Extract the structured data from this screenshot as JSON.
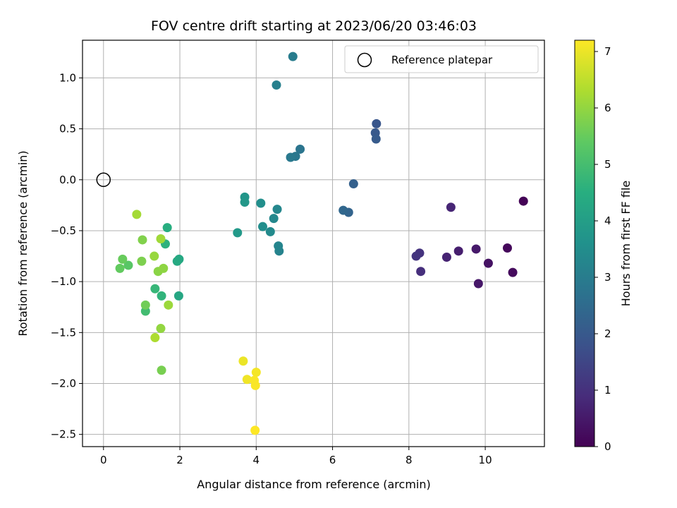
{
  "chart_data": {
    "type": "scatter",
    "title": "FOV centre drift starting at 2023/06/20 03:46:03",
    "xlabel": "Angular distance from reference (arcmin)",
    "ylabel": "Rotation from reference (arcmin)",
    "xlim": [
      -0.55,
      11.55
    ],
    "ylim": [
      -2.62,
      1.37
    ],
    "xticks": [
      0,
      2,
      4,
      6,
      8,
      10
    ],
    "yticks": [
      -2.5,
      -2.0,
      -1.5,
      -1.0,
      -0.5,
      0.0,
      0.5,
      1.0
    ],
    "xtick_labels": [
      "0",
      "2",
      "4",
      "6",
      "8",
      "10"
    ],
    "ytick_labels": [
      "−2.5",
      "−2.0",
      "−1.5",
      "−1.0",
      "−0.5",
      "0.0",
      "0.5",
      "1.0"
    ],
    "grid": true,
    "colormap": "viridis",
    "colorbar": {
      "label": "Hours from first FF file",
      "range": [
        0,
        7.2
      ],
      "ticks": [
        0,
        1,
        2,
        3,
        4,
        5,
        6,
        7
      ],
      "tick_labels": [
        "0",
        "1",
        "2",
        "3",
        "4",
        "5",
        "6",
        "7"
      ]
    },
    "legend": {
      "entries": [
        "Reference platepar"
      ],
      "position": "top-right"
    },
    "reference_point": {
      "x": 0,
      "y": 0
    },
    "points": [
      {
        "x": 11.0,
        "y": -0.21,
        "c": 0.05
      },
      {
        "x": 10.58,
        "y": -0.67,
        "c": 0.15
      },
      {
        "x": 10.72,
        "y": -0.91,
        "c": 0.2
      },
      {
        "x": 10.08,
        "y": -0.82,
        "c": 0.35
      },
      {
        "x": 9.82,
        "y": -1.02,
        "c": 0.45
      },
      {
        "x": 9.76,
        "y": -0.68,
        "c": 0.5
      },
      {
        "x": 9.3,
        "y": -0.7,
        "c": 0.6
      },
      {
        "x": 8.99,
        "y": -0.76,
        "c": 0.7
      },
      {
        "x": 9.1,
        "y": -0.27,
        "c": 0.75
      },
      {
        "x": 8.31,
        "y": -0.9,
        "c": 0.95
      },
      {
        "x": 8.28,
        "y": -0.72,
        "c": 1.05
      },
      {
        "x": 8.19,
        "y": -0.75,
        "c": 1.1
      },
      {
        "x": 7.15,
        "y": 0.55,
        "c": 1.9
      },
      {
        "x": 7.12,
        "y": 0.46,
        "c": 2.0
      },
      {
        "x": 7.14,
        "y": 0.4,
        "c": 2.05
      },
      {
        "x": 6.55,
        "y": -0.04,
        "c": 2.2
      },
      {
        "x": 6.42,
        "y": -0.32,
        "c": 2.3
      },
      {
        "x": 6.28,
        "y": -0.3,
        "c": 2.4
      },
      {
        "x": 5.15,
        "y": 0.3,
        "c": 2.8
      },
      {
        "x": 5.03,
        "y": 0.23,
        "c": 2.85
      },
      {
        "x": 4.9,
        "y": 0.22,
        "c": 2.9
      },
      {
        "x": 4.96,
        "y": 1.21,
        "c": 3.0
      },
      {
        "x": 4.53,
        "y": 0.93,
        "c": 3.1
      },
      {
        "x": 4.6,
        "y": -0.7,
        "c": 3.2
      },
      {
        "x": 4.58,
        "y": -0.65,
        "c": 3.25
      },
      {
        "x": 4.55,
        "y": -0.29,
        "c": 3.3
      },
      {
        "x": 4.46,
        "y": -0.38,
        "c": 3.35
      },
      {
        "x": 4.37,
        "y": -0.51,
        "c": 3.4
      },
      {
        "x": 4.17,
        "y": -0.46,
        "c": 3.5
      },
      {
        "x": 4.12,
        "y": -0.23,
        "c": 3.55
      },
      {
        "x": 3.7,
        "y": -0.17,
        "c": 3.75
      },
      {
        "x": 3.7,
        "y": -0.22,
        "c": 3.8
      },
      {
        "x": 3.51,
        "y": -0.52,
        "c": 3.85
      },
      {
        "x": 1.97,
        "y": -1.14,
        "c": 4.25
      },
      {
        "x": 1.98,
        "y": -0.78,
        "c": 4.3
      },
      {
        "x": 1.93,
        "y": -0.8,
        "c": 4.35
      },
      {
        "x": 1.67,
        "y": -0.47,
        "c": 4.5
      },
      {
        "x": 1.62,
        "y": -0.63,
        "c": 4.6
      },
      {
        "x": 1.52,
        "y": -1.14,
        "c": 4.65
      },
      {
        "x": 1.35,
        "y": -1.07,
        "c": 4.75
      },
      {
        "x": 1.1,
        "y": -1.29,
        "c": 4.95
      },
      {
        "x": 0.65,
        "y": -0.84,
        "c": 5.3
      },
      {
        "x": 0.43,
        "y": -0.87,
        "c": 5.45
      },
      {
        "x": 0.5,
        "y": -0.78,
        "c": 5.5
      },
      {
        "x": 1.1,
        "y": -1.23,
        "c": 5.6
      },
      {
        "x": 1.52,
        "y": -1.87,
        "c": 5.7
      },
      {
        "x": 1.0,
        "y": -0.8,
        "c": 5.75
      },
      {
        "x": 1.02,
        "y": -0.59,
        "c": 5.8
      },
      {
        "x": 1.43,
        "y": -0.9,
        "c": 5.9
      },
      {
        "x": 1.57,
        "y": -0.87,
        "c": 5.95
      },
      {
        "x": 1.5,
        "y": -1.46,
        "c": 6.0
      },
      {
        "x": 1.33,
        "y": -0.75,
        "c": 6.05
      },
      {
        "x": 1.7,
        "y": -1.23,
        "c": 6.1
      },
      {
        "x": 1.5,
        "y": -0.58,
        "c": 6.15
      },
      {
        "x": 0.87,
        "y": -0.34,
        "c": 6.2
      },
      {
        "x": 1.35,
        "y": -1.55,
        "c": 6.3
      },
      {
        "x": 3.66,
        "y": -1.78,
        "c": 7.0
      },
      {
        "x": 3.76,
        "y": -1.96,
        "c": 7.05
      },
      {
        "x": 4.0,
        "y": -1.89,
        "c": 7.1
      },
      {
        "x": 3.98,
        "y": -2.02,
        "c": 7.15
      },
      {
        "x": 3.95,
        "y": -1.97,
        "c": 7.15
      },
      {
        "x": 3.97,
        "y": -2.46,
        "c": 7.2
      }
    ]
  }
}
